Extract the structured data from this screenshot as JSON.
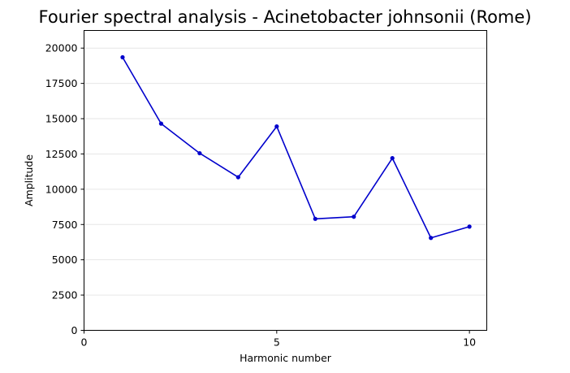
{
  "chart_data": {
    "type": "line",
    "title": "Fourier spectral analysis - Acinetobacter johnsonii (Rome)",
    "xlabel": "Harmonic number",
    "ylabel": "Amplitude",
    "xlim": [
      0,
      10.45
    ],
    "ylim": [
      0,
      21250
    ],
    "xticks": [
      0,
      5,
      10
    ],
    "yticks": [
      0,
      2500,
      5000,
      7500,
      10000,
      12500,
      15000,
      17500,
      20000
    ],
    "grid": "horizontal",
    "legend": "none",
    "series": [
      {
        "color": "#0000cc",
        "x": [
          1,
          2,
          3,
          4,
          5,
          6,
          7,
          8,
          9,
          10
        ],
        "y": [
          19350,
          14650,
          12550,
          10850,
          14450,
          7900,
          8050,
          12200,
          6550,
          7350
        ]
      }
    ]
  }
}
